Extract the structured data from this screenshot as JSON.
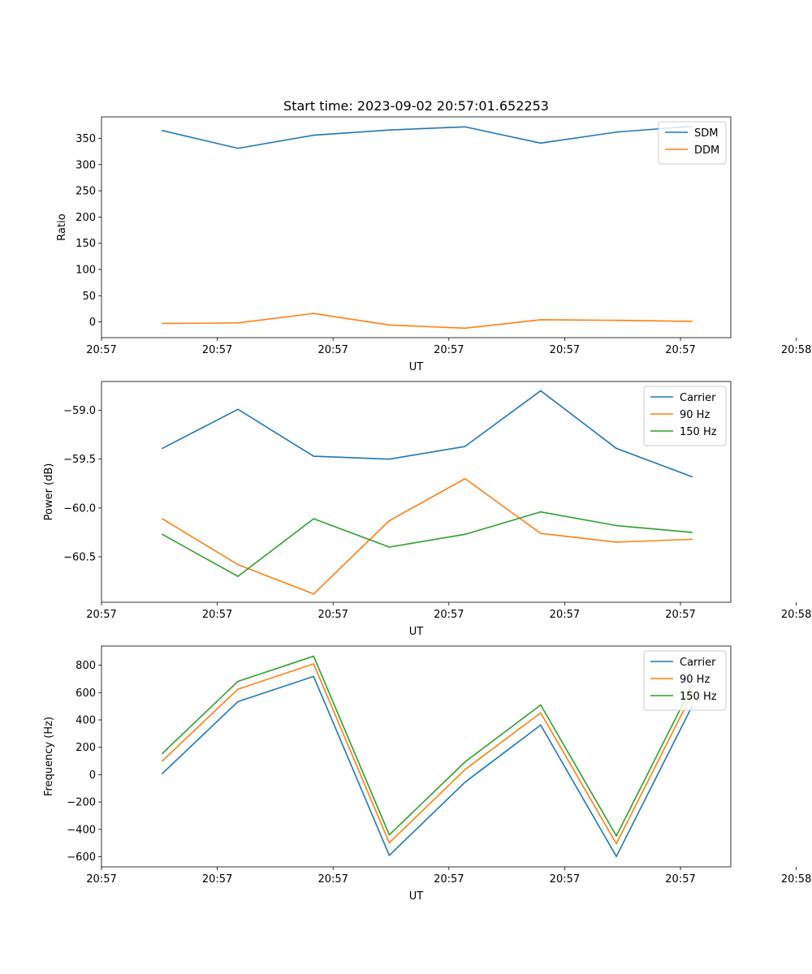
{
  "figure_title": "Start time: 2023-09-02 20:57:01.652253",
  "chart_data": [
    {
      "type": "line",
      "title": "Start time: 2023-09-02 20:57:01.652253",
      "xlabel": "UT",
      "ylabel": "Ratio",
      "x": [
        1,
        2,
        3,
        4,
        5,
        6,
        7,
        8
      ],
      "xlim": [
        0.197,
        8.512
      ],
      "x_ticks": [
        0.197,
        1.727,
        3.257,
        4.787,
        6.317,
        7.847,
        9.377
      ],
      "x_tick_labels": [
        "20:57",
        "20:57",
        "20:57",
        "20:57",
        "20:57",
        "20:57",
        "20:58"
      ],
      "ylim": [
        -30.1,
        391
      ],
      "y_ticks": [
        0,
        50,
        100,
        150,
        200,
        250,
        300,
        350
      ],
      "y_tick_labels": [
        "0",
        "50",
        "100",
        "150",
        "200",
        "250",
        "300",
        "350"
      ],
      "legend_position": "top-right",
      "series": [
        {
          "name": "SDM",
          "color": "#1f77b4",
          "values": [
            365,
            331,
            356,
            366,
            372,
            341,
            362,
            373
          ]
        },
        {
          "name": "DDM",
          "color": "#ff7f0e",
          "values": [
            -3,
            -2,
            16,
            -6,
            -12,
            4,
            3,
            1
          ]
        }
      ]
    },
    {
      "type": "line",
      "title": "",
      "xlabel": "UT",
      "ylabel": "Power (dB)",
      "x": [
        1,
        2,
        3,
        4,
        5,
        6,
        7,
        8
      ],
      "xlim": [
        0.197,
        8.512
      ],
      "x_ticks": [
        0.197,
        1.727,
        3.257,
        4.787,
        6.317,
        7.847,
        9.377
      ],
      "x_tick_labels": [
        "20:57",
        "20:57",
        "20:57",
        "20:57",
        "20:57",
        "20:57",
        "20:58"
      ],
      "ylim": [
        -60.965,
        -58.705
      ],
      "y_ticks": [
        -60.5,
        -60.0,
        -59.5,
        -59.0
      ],
      "y_tick_labels": [
        "−60.5",
        "−60.0",
        "−59.5",
        "−59.0"
      ],
      "legend_position": "top-right",
      "series": [
        {
          "name": "Carrier",
          "color": "#1f77b4",
          "values": [
            -59.39,
            -58.99,
            -59.47,
            -59.5,
            -59.37,
            -58.8,
            -59.39,
            -59.68
          ]
        },
        {
          "name": "90 Hz",
          "color": "#ff7f0e",
          "values": [
            -60.11,
            -60.58,
            -60.88,
            -60.13,
            -59.7,
            -60.26,
            -60.35,
            -60.32
          ]
        },
        {
          "name": "150 Hz",
          "color": "#2ca02c",
          "values": [
            -60.27,
            -60.7,
            -60.11,
            -60.4,
            -60.27,
            -60.04,
            -60.18,
            -60.25
          ]
        }
      ]
    },
    {
      "type": "line",
      "title": "",
      "xlabel": "UT",
      "ylabel": "Frequency (Hz)",
      "x": [
        1,
        2,
        3,
        4,
        5,
        6,
        7,
        8
      ],
      "xlim": [
        0.197,
        8.512
      ],
      "x_ticks": [
        0.197,
        1.727,
        3.257,
        4.787,
        6.317,
        7.847,
        9.377
      ],
      "x_tick_labels": [
        "20:57",
        "20:57",
        "20:57",
        "20:57",
        "20:57",
        "20:57",
        "20:58"
      ],
      "ylim": [
        -674,
        940
      ],
      "y_ticks": [
        -600,
        -400,
        -200,
        0,
        200,
        400,
        600,
        800
      ],
      "y_tick_labels": [
        "−600",
        "−400",
        "−200",
        "0",
        "200",
        "400",
        "600",
        "800"
      ],
      "legend_position": "top-right",
      "series": [
        {
          "name": "Carrier",
          "color": "#1f77b4",
          "values": [
            8,
            534,
            718,
            -590,
            -55,
            363,
            -598,
            500
          ]
        },
        {
          "name": "90 Hz",
          "color": "#ff7f0e",
          "values": [
            100,
            625,
            810,
            -498,
            37,
            452,
            -505,
            592
          ]
        },
        {
          "name": "150 Hz",
          "color": "#2ca02c",
          "values": [
            155,
            682,
            866,
            -440,
            93,
            510,
            -448,
            650
          ]
        }
      ]
    }
  ]
}
